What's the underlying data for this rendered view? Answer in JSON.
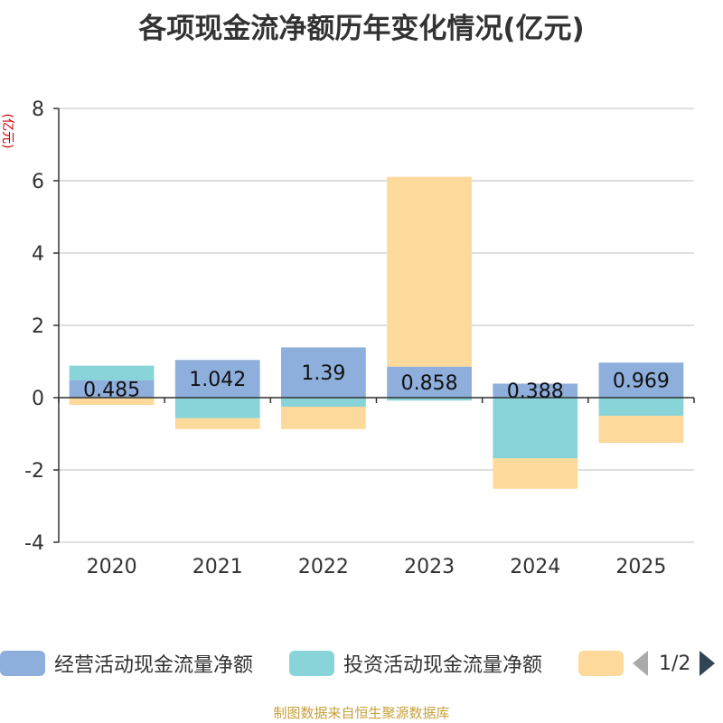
{
  "footer": "制图数据来自恒生聚源数据库",
  "pager": {
    "text": "1/2"
  },
  "legend": [
    {
      "name": "经营活动现金流量净额",
      "color": "#8eaedb"
    },
    {
      "name": "投资活动现金流量净额",
      "color": "#88d4d8"
    },
    {
      "name": "",
      "color": "#fdd99b"
    }
  ],
  "chart_data": {
    "type": "bar",
    "stacked": true,
    "title": "各项现金流净额历年变化情况(亿元)",
    "ylabel": "(亿元)",
    "ylabel_color": "#cc0000",
    "ylim": [
      -4,
      8
    ],
    "yticks": [
      -4,
      -2,
      0,
      2,
      4,
      6,
      8
    ],
    "grid": true,
    "categories": [
      "2020",
      "2021",
      "2022",
      "2023",
      "2024",
      "2025"
    ],
    "series": [
      {
        "name": "经营活动现金流量净额",
        "color": "#8eaedb",
        "values": [
          0.485,
          1.042,
          1.39,
          0.858,
          0.388,
          0.969
        ]
      },
      {
        "name": "投资活动现金流量净额",
        "color": "#88d4d8",
        "values": [
          0.4,
          -0.57,
          -0.25,
          -0.08,
          -1.68,
          -0.5
        ]
      },
      {
        "name": "",
        "color": "#fdd99b",
        "values": [
          -0.2,
          -0.3,
          -0.62,
          5.25,
          -0.84,
          -0.75
        ]
      }
    ],
    "data_labels": [
      "0.485",
      "1.042",
      "1.39",
      "0.858",
      "0.388",
      "0.969"
    ]
  }
}
